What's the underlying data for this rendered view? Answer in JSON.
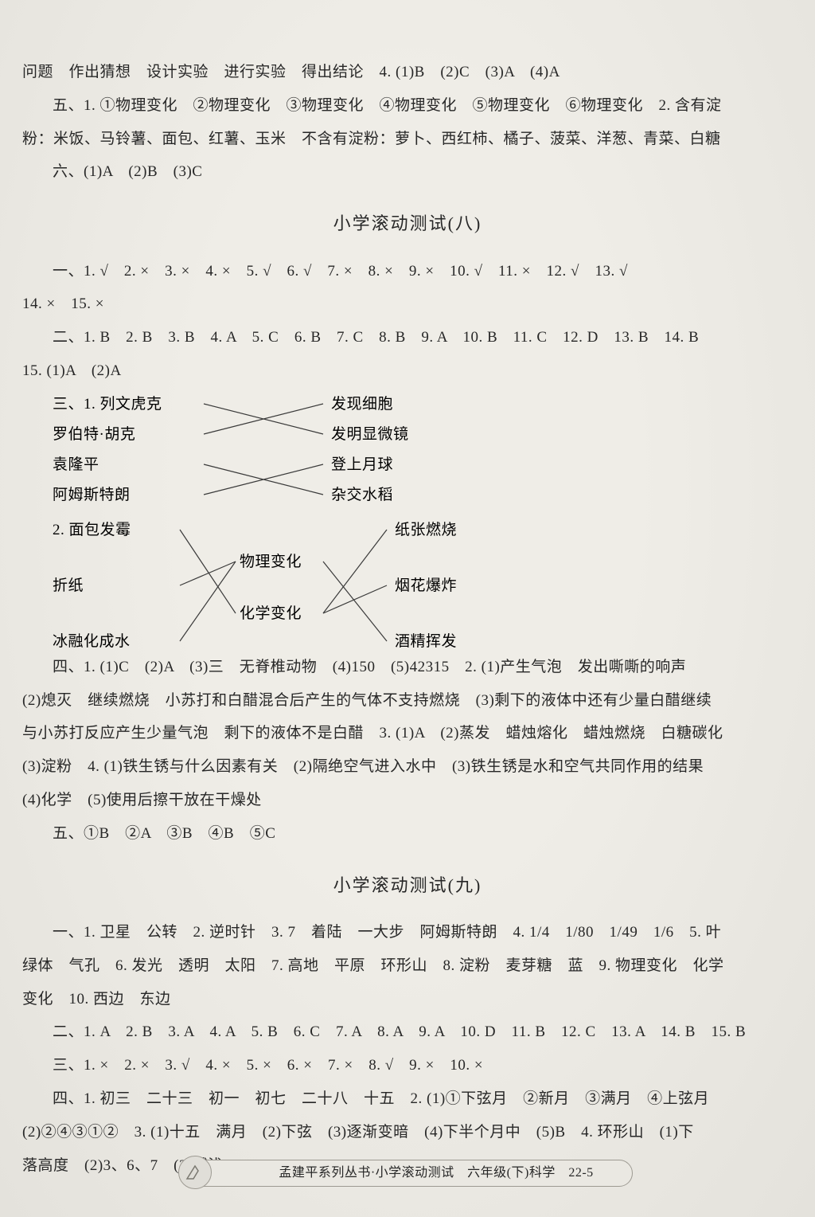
{
  "top": {
    "l1": "问题　作出猜想　设计实验　进行实验　得出结论　4. (1)B　(2)C　(3)A　(4)A",
    "l2": "五、1. ①物理变化　②物理变化　③物理变化　④物理变化　⑤物理变化　⑥物理变化　2. 含有淀",
    "l3": "粉：米饭、马铃薯、面包、红薯、玉米　不含有淀粉：萝卜、西红柿、橘子、菠菜、洋葱、青菜、白糖",
    "l4": "六、(1)A　(2)B　(3)C"
  },
  "test8": {
    "title": "小学滚动测试(八)",
    "q1a": "一、1. √　2. ×　3. ×　4. ×　5. √　6. √　7. ×　8. ×　9. ×　10. √　11. ×　12. √　13. √",
    "q1b": "14. ×　15. ×",
    "q2a": "二、1. B　2. B　3. B　4. A　5. C　6. B　7. C　8. B　9. A　10. B　11. C　12. D　13. B　14. B",
    "q2b": "15. (1)A　(2)A",
    "match1": {
      "left": [
        "三、1. 列文虎克",
        "罗伯特·胡克",
        "袁隆平",
        "阿姆斯特朗"
      ],
      "right": [
        "发现细胞",
        "发明显微镜",
        "登上月球",
        "杂交水稻"
      ],
      "edges": [
        [
          0,
          1
        ],
        [
          1,
          0
        ],
        [
          2,
          3
        ],
        [
          3,
          2
        ]
      ],
      "line_color": "#3a3a3a"
    },
    "match2": {
      "left": [
        "2. 面包发霉",
        "折纸",
        "冰融化成水"
      ],
      "mid": [
        "物理变化",
        "化学变化"
      ],
      "right": [
        "纸张燃烧",
        "烟花爆炸",
        "酒精挥发"
      ],
      "edgesLeft": [
        [
          0,
          1
        ],
        [
          1,
          0
        ],
        [
          2,
          0
        ]
      ],
      "edgesRight": [
        [
          1,
          0
        ],
        [
          1,
          1
        ],
        [
          0,
          2
        ]
      ],
      "line_color": "#3a3a3a"
    },
    "q4a": "四、1. (1)C　(2)A　(3)三　无脊椎动物　(4)150　(5)42315　2. (1)产生气泡　发出嘶嘶的响声",
    "q4b": "(2)熄灭　继续燃烧　小苏打和白醋混合后产生的气体不支持燃烧　(3)剩下的液体中还有少量白醋继续",
    "q4c": "与小苏打反应产生少量气泡　剩下的液体不是白醋　3. (1)A　(2)蒸发　蜡烛熔化　蜡烛燃烧　白糖碳化",
    "q4d": "(3)淀粉　4. (1)铁生锈与什么因素有关　(2)隔绝空气进入水中　(3)铁生锈是水和空气共同作用的结果",
    "q4e": "(4)化学　(5)使用后擦干放在干燥处",
    "q5": "五、①B　②A　③B　④B　⑤C"
  },
  "test9": {
    "title": "小学滚动测试(九)",
    "q1a": "一、1. 卫星　公转　2. 逆时针　3. 7　着陆　一大步　阿姆斯特朗　4. 1/4　1/80　1/49　1/6　5. 叶",
    "q1b": "绿体　气孔　6. 发光　透明　太阳　7. 高地　平原　环形山　8. 淀粉　麦芽糖　蓝　9. 物理变化　化学",
    "q1c": "变化　10. 西边　东边",
    "q2": "二、1. A　2. B　3. A　4. A　5. B　6. C　7. A　8. A　9. A　10. D　11. B　12. C　13. A　14. B　15. B",
    "q3": "三、1. ×　2. ×　3. √　4. ×　5. ×　6. ×　7. ×　8. √　9. ×　10. ×",
    "q4a": "四、1. 初三　二十三　初一　初七　二十八　十五　2. (1)①下弦月　②新月　③满月　④上弦月",
    "q4b": "(2)②④③①②　3. (1)十五　满月　(2)下弦　(3)逐渐变暗　(4)下半个月中　(5)B　4. 环形山　(1)下",
    "q4c": "落高度　(2)3、6、7　(3)越浅"
  },
  "footer": {
    "text": "孟建平系列丛书·小学滚动测试　六年级(下)科学　22-5"
  },
  "diagram_style": {
    "font_size": 19,
    "stroke_width": 1.2
  }
}
